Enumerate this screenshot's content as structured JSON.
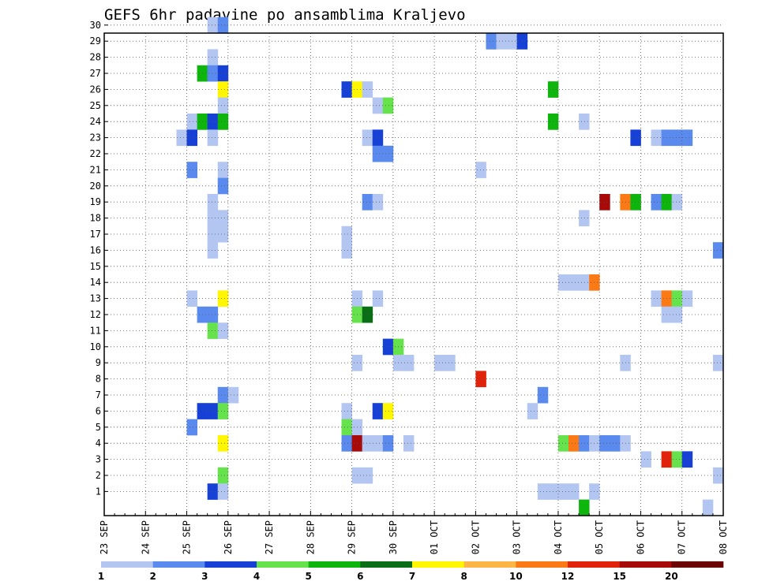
{
  "chart_data": {
    "type": "heatmap",
    "title": "GEFS 6hr padavine po ansamblima Kraljevo",
    "xlabel": "",
    "ylabel": "",
    "x_ticks": [
      "23 SEP",
      "24 SEP",
      "25 SEP",
      "26 SEP",
      "27 SEP",
      "28 SEP",
      "29 SEP",
      "30 SEP",
      "01 OCT",
      "02 OCT",
      "03 OCT",
      "04 OCT",
      "05 OCT",
      "06 OCT",
      "07 OCT",
      "08 OCT"
    ],
    "x_step_hours": 6,
    "y_ticks": [
      1,
      2,
      3,
      4,
      5,
      6,
      7,
      8,
      9,
      10,
      11,
      12,
      13,
      14,
      15,
      16,
      17,
      18,
      19,
      20,
      21,
      22,
      23,
      24,
      25,
      26,
      27,
      28,
      29,
      30
    ],
    "grid": true,
    "colorbar": {
      "labels": [
        "1",
        "2",
        "3",
        "4",
        "5",
        "6",
        "7",
        "8",
        "10",
        "12",
        "15",
        "20"
      ],
      "colors": [
        "#b3c6f2",
        "#5b8aee",
        "#1740d6",
        "#66e24c",
        "#0db50d",
        "#0a6e16",
        "#fff600",
        "#fdb545",
        "#fb7a16",
        "#e1230c",
        "#a80a0a",
        "#6b0505"
      ]
    },
    "cells": [
      {
        "m": 30,
        "d": 2,
        "h": 12,
        "c": 0
      },
      {
        "m": 30,
        "d": 2,
        "h": 18,
        "c": 1
      },
      {
        "m": 29,
        "d": 9,
        "h": 6,
        "c": 1
      },
      {
        "m": 29,
        "d": 9,
        "h": 12,
        "c": 0
      },
      {
        "m": 29,
        "d": 9,
        "h": 18,
        "c": 0
      },
      {
        "m": 29,
        "d": 10,
        "h": 0,
        "c": 2
      },
      {
        "m": 28,
        "d": 2,
        "h": 12,
        "c": 0
      },
      {
        "m": 27,
        "d": 2,
        "h": 6,
        "c": 4
      },
      {
        "m": 27,
        "d": 2,
        "h": 12,
        "c": 1
      },
      {
        "m": 27,
        "d": 2,
        "h": 18,
        "c": 2
      },
      {
        "m": 26,
        "d": 2,
        "h": 18,
        "c": 6
      },
      {
        "m": 26,
        "d": 5,
        "h": 18,
        "c": 2
      },
      {
        "m": 26,
        "d": 6,
        "h": 0,
        "c": 6
      },
      {
        "m": 26,
        "d": 6,
        "h": 6,
        "c": 0
      },
      {
        "m": 26,
        "d": 10,
        "h": 18,
        "c": 4
      },
      {
        "m": 25,
        "d": 2,
        "h": 18,
        "c": 0
      },
      {
        "m": 25,
        "d": 6,
        "h": 12,
        "c": 0
      },
      {
        "m": 25,
        "d": 6,
        "h": 18,
        "c": 3
      },
      {
        "m": 24,
        "d": 2,
        "h": 0,
        "c": 0
      },
      {
        "m": 24,
        "d": 2,
        "h": 6,
        "c": 4
      },
      {
        "m": 24,
        "d": 2,
        "h": 12,
        "c": 2
      },
      {
        "m": 24,
        "d": 2,
        "h": 18,
        "c": 4
      },
      {
        "m": 24,
        "d": 10,
        "h": 18,
        "c": 4
      },
      {
        "m": 24,
        "d": 11,
        "h": 12,
        "c": 0
      },
      {
        "m": 23,
        "d": 1,
        "h": 18,
        "c": 0
      },
      {
        "m": 23,
        "d": 2,
        "h": 0,
        "c": 2
      },
      {
        "m": 23,
        "d": 2,
        "h": 12,
        "c": 0
      },
      {
        "m": 23,
        "d": 6,
        "h": 6,
        "c": 0
      },
      {
        "m": 23,
        "d": 6,
        "h": 12,
        "c": 2
      },
      {
        "m": 23,
        "d": 12,
        "h": 18,
        "c": 2
      },
      {
        "m": 23,
        "d": 13,
        "h": 6,
        "c": 0
      },
      {
        "m": 23,
        "d": 13,
        "h": 12,
        "c": 1
      },
      {
        "m": 23,
        "d": 13,
        "h": 18,
        "c": 1
      },
      {
        "m": 23,
        "d": 14,
        "h": 0,
        "c": 1
      },
      {
        "m": 22,
        "d": 6,
        "h": 12,
        "c": 1
      },
      {
        "m": 22,
        "d": 6,
        "h": 18,
        "c": 1
      },
      {
        "m": 21,
        "d": 2,
        "h": 0,
        "c": 1
      },
      {
        "m": 21,
        "d": 2,
        "h": 18,
        "c": 0
      },
      {
        "m": 21,
        "d": 9,
        "h": 0,
        "c": 0
      },
      {
        "m": 20,
        "d": 2,
        "h": 18,
        "c": 1
      },
      {
        "m": 19,
        "d": 2,
        "h": 12,
        "c": 0
      },
      {
        "m": 19,
        "d": 6,
        "h": 6,
        "c": 1
      },
      {
        "m": 19,
        "d": 6,
        "h": 12,
        "c": 0
      },
      {
        "m": 19,
        "d": 12,
        "h": 0,
        "c": 10
      },
      {
        "m": 19,
        "d": 12,
        "h": 12,
        "c": 8
      },
      {
        "m": 19,
        "d": 12,
        "h": 18,
        "c": 4
      },
      {
        "m": 19,
        "d": 13,
        "h": 6,
        "c": 1
      },
      {
        "m": 19,
        "d": 13,
        "h": 12,
        "c": 4
      },
      {
        "m": 19,
        "d": 13,
        "h": 18,
        "c": 0
      },
      {
        "m": 18,
        "d": 2,
        "h": 12,
        "c": 0
      },
      {
        "m": 18,
        "d": 2,
        "h": 18,
        "c": 0
      },
      {
        "m": 18,
        "d": 11,
        "h": 12,
        "c": 0
      },
      {
        "m": 17,
        "d": 2,
        "h": 12,
        "c": 0
      },
      {
        "m": 17,
        "d": 2,
        "h": 18,
        "c": 0
      },
      {
        "m": 17,
        "d": 5,
        "h": 18,
        "c": 0
      },
      {
        "m": 16,
        "d": 2,
        "h": 12,
        "c": 0
      },
      {
        "m": 16,
        "d": 5,
        "h": 18,
        "c": 0
      },
      {
        "m": 16,
        "d": 14,
        "h": 18,
        "c": 1
      },
      {
        "m": 14,
        "d": 11,
        "h": 0,
        "c": 0
      },
      {
        "m": 14,
        "d": 11,
        "h": 6,
        "c": 0
      },
      {
        "m": 14,
        "d": 11,
        "h": 12,
        "c": 0
      },
      {
        "m": 14,
        "d": 11,
        "h": 18,
        "c": 8
      },
      {
        "m": 13,
        "d": 2,
        "h": 0,
        "c": 0
      },
      {
        "m": 13,
        "d": 2,
        "h": 18,
        "c": 6
      },
      {
        "m": 13,
        "d": 6,
        "h": 0,
        "c": 0
      },
      {
        "m": 13,
        "d": 6,
        "h": 12,
        "c": 0
      },
      {
        "m": 13,
        "d": 13,
        "h": 6,
        "c": 0
      },
      {
        "m": 13,
        "d": 13,
        "h": 12,
        "c": 8
      },
      {
        "m": 13,
        "d": 13,
        "h": 18,
        "c": 3
      },
      {
        "m": 13,
        "d": 14,
        "h": 0,
        "c": 0
      },
      {
        "m": 12,
        "d": 2,
        "h": 6,
        "c": 1
      },
      {
        "m": 12,
        "d": 2,
        "h": 12,
        "c": 1
      },
      {
        "m": 12,
        "d": 6,
        "h": 0,
        "c": 3
      },
      {
        "m": 12,
        "d": 6,
        "h": 6,
        "c": 5
      },
      {
        "m": 12,
        "d": 13,
        "h": 12,
        "c": 0
      },
      {
        "m": 12,
        "d": 13,
        "h": 18,
        "c": 0
      },
      {
        "m": 11,
        "d": 2,
        "h": 12,
        "c": 3
      },
      {
        "m": 11,
        "d": 2,
        "h": 18,
        "c": 0
      },
      {
        "m": 10,
        "d": 6,
        "h": 18,
        "c": 2
      },
      {
        "m": 10,
        "d": 7,
        "h": 0,
        "c": 3
      },
      {
        "m": 9,
        "d": 6,
        "h": 0,
        "c": 0
      },
      {
        "m": 9,
        "d": 7,
        "h": 0,
        "c": 0
      },
      {
        "m": 9,
        "d": 7,
        "h": 6,
        "c": 0
      },
      {
        "m": 9,
        "d": 8,
        "h": 0,
        "c": 0
      },
      {
        "m": 9,
        "d": 8,
        "h": 6,
        "c": 0
      },
      {
        "m": 9,
        "d": 12,
        "h": 12,
        "c": 0
      },
      {
        "m": 9,
        "d": 14,
        "h": 18,
        "c": 0
      },
      {
        "m": 8,
        "d": 9,
        "h": 0,
        "c": 9
      },
      {
        "m": 7,
        "d": 2,
        "h": 18,
        "c": 1
      },
      {
        "m": 7,
        "d": 3,
        "h": 0,
        "c": 0
      },
      {
        "m": 7,
        "d": 10,
        "h": 12,
        "c": 1
      },
      {
        "m": 6,
        "d": 2,
        "h": 6,
        "c": 2
      },
      {
        "m": 6,
        "d": 2,
        "h": 12,
        "c": 2
      },
      {
        "m": 6,
        "d": 2,
        "h": 18,
        "c": 3
      },
      {
        "m": 6,
        "d": 5,
        "h": 18,
        "c": 0
      },
      {
        "m": 6,
        "d": 6,
        "h": 12,
        "c": 2
      },
      {
        "m": 6,
        "d": 6,
        "h": 18,
        "c": 6
      },
      {
        "m": 6,
        "d": 10,
        "h": 6,
        "c": 0
      },
      {
        "m": 5,
        "d": 2,
        "h": 0,
        "c": 1
      },
      {
        "m": 5,
        "d": 5,
        "h": 18,
        "c": 3
      },
      {
        "m": 5,
        "d": 6,
        "h": 0,
        "c": 0
      },
      {
        "m": 4,
        "d": 2,
        "h": 18,
        "c": 6
      },
      {
        "m": 4,
        "d": 5,
        "h": 18,
        "c": 1
      },
      {
        "m": 4,
        "d": 6,
        "h": 0,
        "c": 10
      },
      {
        "m": 4,
        "d": 6,
        "h": 6,
        "c": 0
      },
      {
        "m": 4,
        "d": 6,
        "h": 12,
        "c": 0
      },
      {
        "m": 4,
        "d": 6,
        "h": 18,
        "c": 1
      },
      {
        "m": 4,
        "d": 7,
        "h": 6,
        "c": 0
      },
      {
        "m": 4,
        "d": 11,
        "h": 0,
        "c": 3
      },
      {
        "m": 4,
        "d": 11,
        "h": 6,
        "c": 8
      },
      {
        "m": 4,
        "d": 11,
        "h": 12,
        "c": 1
      },
      {
        "m": 4,
        "d": 11,
        "h": 18,
        "c": 0
      },
      {
        "m": 4,
        "d": 12,
        "h": 0,
        "c": 1
      },
      {
        "m": 4,
        "d": 12,
        "h": 6,
        "c": 1
      },
      {
        "m": 4,
        "d": 12,
        "h": 12,
        "c": 0
      },
      {
        "m": 3,
        "d": 13,
        "h": 0,
        "c": 0
      },
      {
        "m": 3,
        "d": 13,
        "h": 12,
        "c": 9
      },
      {
        "m": 3,
        "d": 13,
        "h": 18,
        "c": 3
      },
      {
        "m": 3,
        "d": 14,
        "h": 0,
        "c": 2
      },
      {
        "m": 2,
        "d": 2,
        "h": 18,
        "c": 3
      },
      {
        "m": 2,
        "d": 6,
        "h": 0,
        "c": 0
      },
      {
        "m": 2,
        "d": 6,
        "h": 6,
        "c": 0
      },
      {
        "m": 2,
        "d": 14,
        "h": 18,
        "c": 0
      },
      {
        "m": 1,
        "d": 2,
        "h": 12,
        "c": 2
      },
      {
        "m": 1,
        "d": 2,
        "h": 18,
        "c": 0
      },
      {
        "m": 1,
        "d": 10,
        "h": 12,
        "c": 0
      },
      {
        "m": 1,
        "d": 10,
        "h": 18,
        "c": 0
      },
      {
        "m": 1,
        "d": 11,
        "h": 0,
        "c": 0
      },
      {
        "m": 1,
        "d": 11,
        "h": 6,
        "c": 0
      },
      {
        "m": 1,
        "d": 11,
        "h": 18,
        "c": 0
      },
      {
        "m": 0,
        "d": 11,
        "h": 12,
        "c": 4
      },
      {
        "m": 0,
        "d": 14,
        "h": 12,
        "c": 0
      }
    ]
  }
}
